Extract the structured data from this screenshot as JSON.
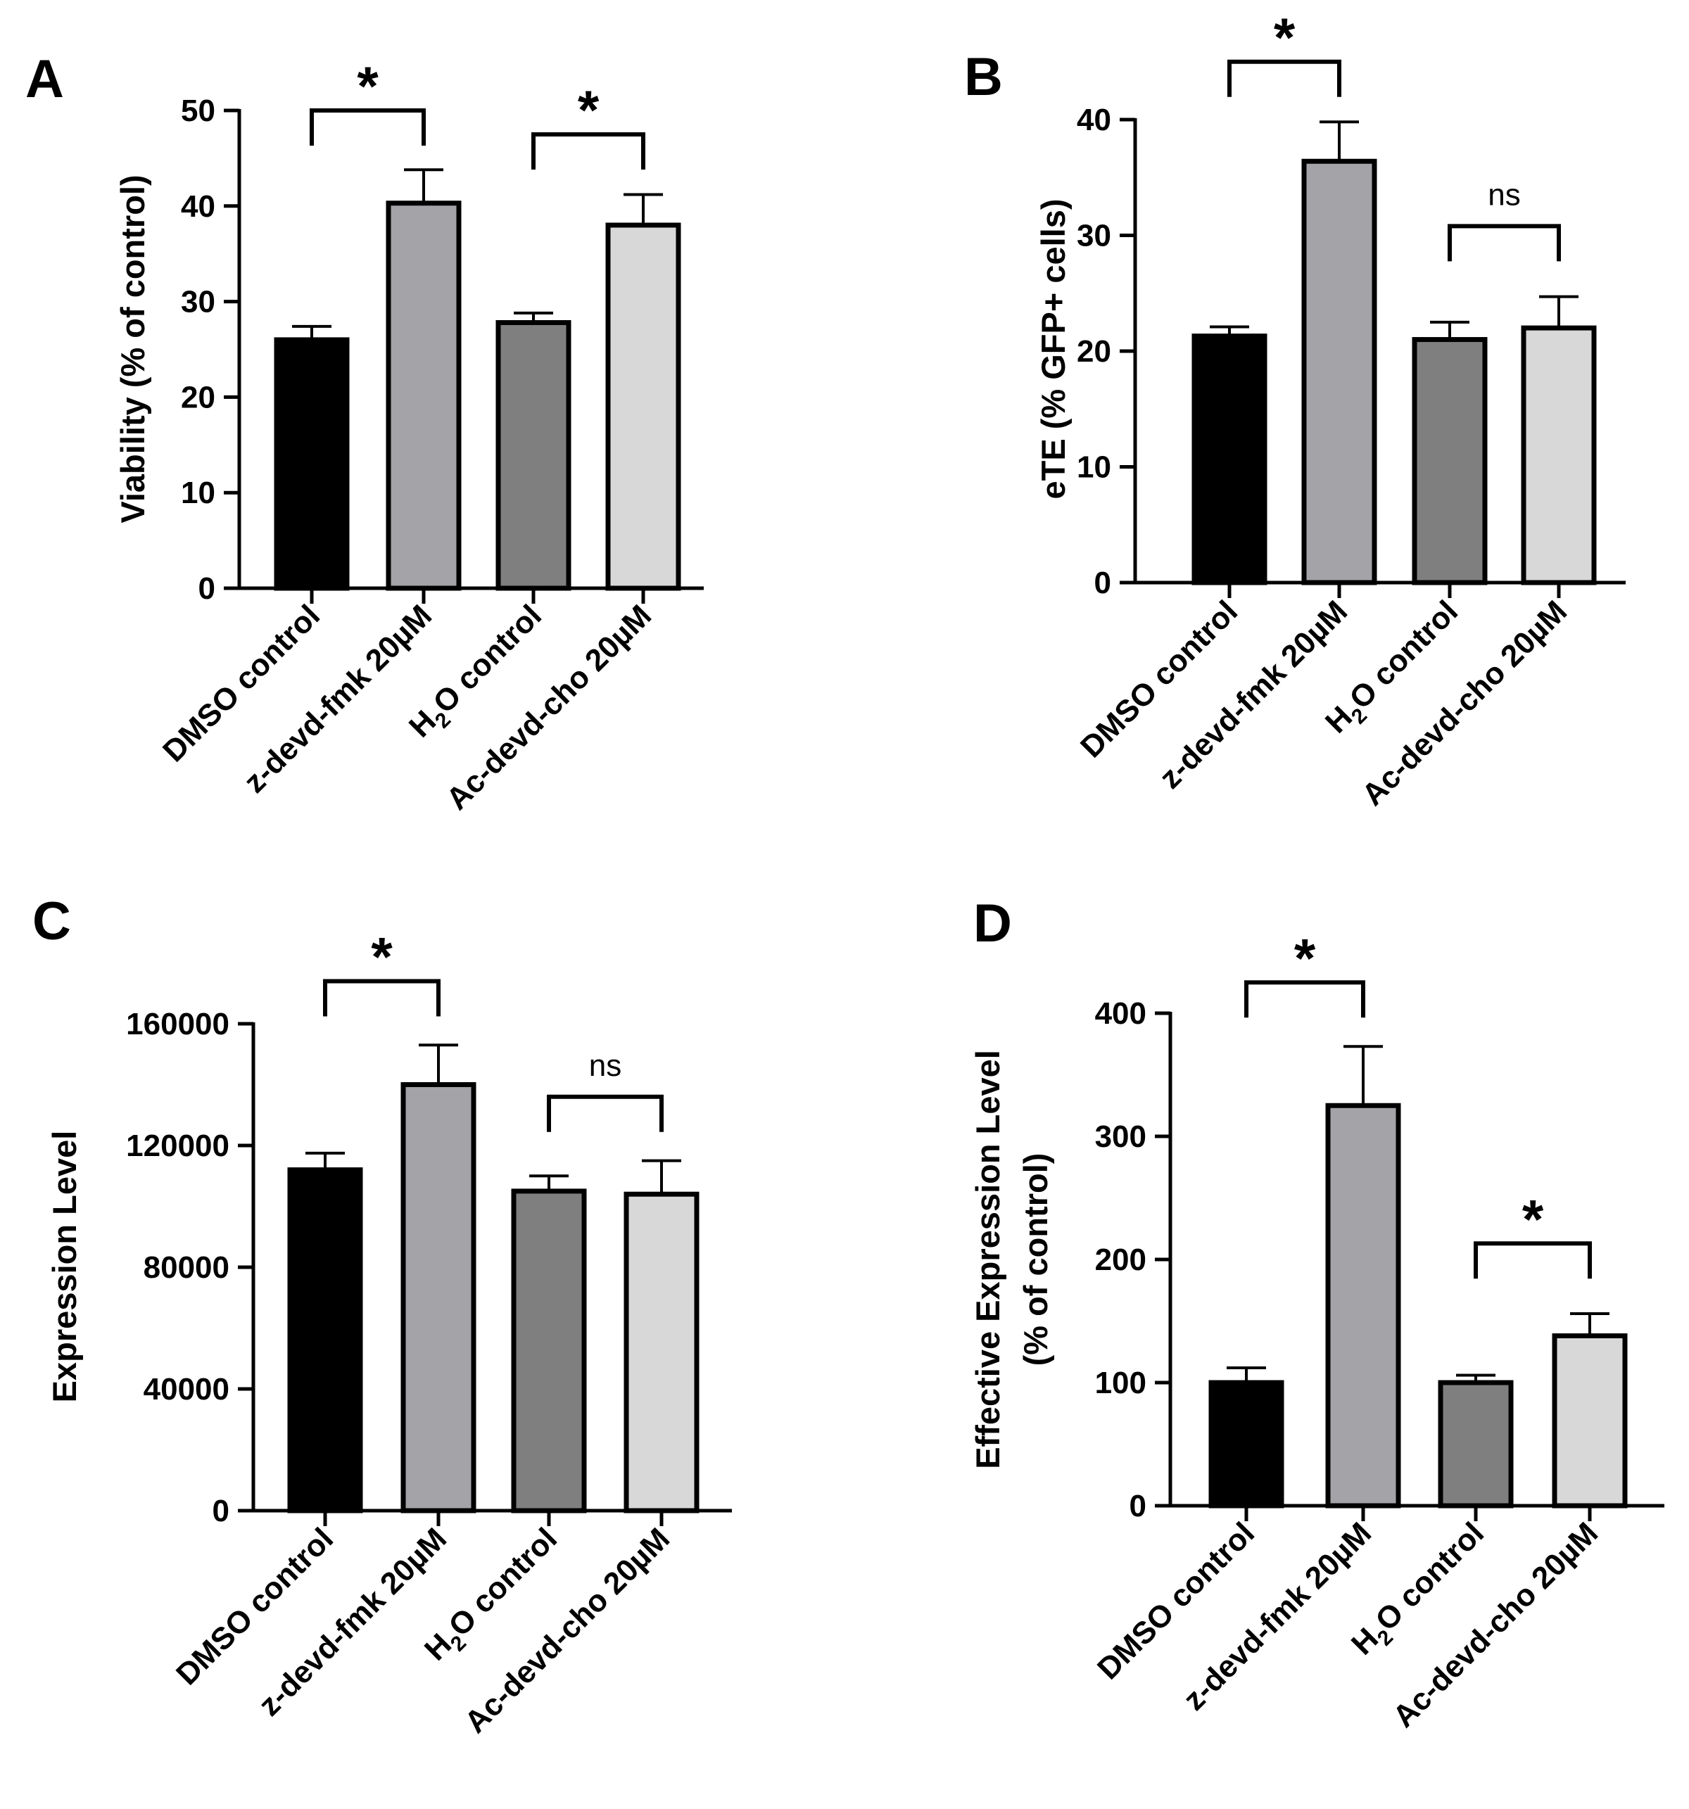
{
  "chart_data": [
    {
      "id": "A",
      "type": "bar",
      "panel_label": "A",
      "ylabel": "Viability (% of control)",
      "ylim": [
        0,
        50
      ],
      "yticks": [
        "0",
        "10",
        "20",
        "30",
        "40",
        "50"
      ],
      "categories": [
        {
          "pre": "DMSO control"
        },
        {
          "pre": "z-devd-fmk 20µM"
        },
        {
          "pre": "H",
          "sub": "2",
          "post": "O control"
        },
        {
          "pre": "Ac-devd-cho 20µM"
        }
      ],
      "values": [
        26,
        40.3,
        27.8,
        38
      ],
      "errors": [
        1.4,
        3.5,
        1.0,
        3.2
      ],
      "colors": [
        "#000000",
        "#a3a3a8",
        "#7f7f7f",
        "#d8d8d8"
      ],
      "brackets": [
        {
          "from": 0,
          "to": 1,
          "label": "*",
          "y": 50
        },
        {
          "from": 2,
          "to": 3,
          "label": "*",
          "y": 47.5
        }
      ]
    },
    {
      "id": "B",
      "type": "bar",
      "panel_label": "B",
      "ylabel": "eTE (% GFP+ cells)",
      "ylim": [
        0,
        40
      ],
      "yticks": [
        "0",
        "10",
        "20",
        "30",
        "40"
      ],
      "categories": [
        {
          "pre": "DMSO control"
        },
        {
          "pre": "z-devd-fmk 20µM"
        },
        {
          "pre": "H",
          "sub": "2",
          "post": "O control"
        },
        {
          "pre": "Ac-devd-cho 20µM"
        }
      ],
      "values": [
        21.3,
        36.4,
        21.0,
        22.0
      ],
      "errors": [
        0.8,
        3.4,
        1.5,
        2.7
      ],
      "colors": [
        "#000000",
        "#a3a3a8",
        "#7f7f7f",
        "#d8d8d8"
      ],
      "brackets": [
        {
          "from": 0,
          "to": 1,
          "label": "*",
          "y": 45
        },
        {
          "from": 2,
          "to": 3,
          "label": "ns",
          "y": 30.8
        }
      ]
    },
    {
      "id": "C",
      "type": "bar",
      "panel_label": "C",
      "ylabel": "Expression Level",
      "ylim": [
        0,
        160000
      ],
      "yticks": [
        "0",
        "40000",
        "80000",
        "120000",
        "160000"
      ],
      "categories": [
        {
          "pre": "DMSO control"
        },
        {
          "pre": "z-devd-fmk 20µM"
        },
        {
          "pre": "H",
          "sub": "2",
          "post": "O control"
        },
        {
          "pre": "Ac-devd-cho 20µM"
        }
      ],
      "values": [
        112000,
        140000,
        105000,
        104000
      ],
      "errors": [
        5500,
        13000,
        5000,
        11000
      ],
      "colors": [
        "#000000",
        "#a3a3a8",
        "#7f7f7f",
        "#d8d8d8"
      ],
      "brackets": [
        {
          "from": 0,
          "to": 1,
          "label": "*",
          "y": 174000
        },
        {
          "from": 2,
          "to": 3,
          "label": "ns",
          "y": 136000
        }
      ]
    },
    {
      "id": "D",
      "type": "bar",
      "panel_label": "D",
      "ylabel": "Effective Expression Level",
      "ylabel2": "(% of control)",
      "ylim": [
        0,
        400
      ],
      "yticks": [
        "0",
        "100",
        "200",
        "300",
        "400"
      ],
      "categories": [
        {
          "pre": "DMSO control"
        },
        {
          "pre": "z-devd-fmk 20µM"
        },
        {
          "pre": "H",
          "sub": "2",
          "post": "O control"
        },
        {
          "pre": "Ac-devd-cho 20µM"
        }
      ],
      "values": [
        100,
        325,
        100,
        138
      ],
      "errors": [
        12,
        48,
        6,
        18
      ],
      "colors": [
        "#000000",
        "#a3a3a8",
        "#7f7f7f",
        "#d8d8d8"
      ],
      "brackets": [
        {
          "from": 0,
          "to": 1,
          "label": "*",
          "y": 425
        },
        {
          "from": 2,
          "to": 3,
          "label": "*",
          "y": 213
        }
      ]
    }
  ]
}
